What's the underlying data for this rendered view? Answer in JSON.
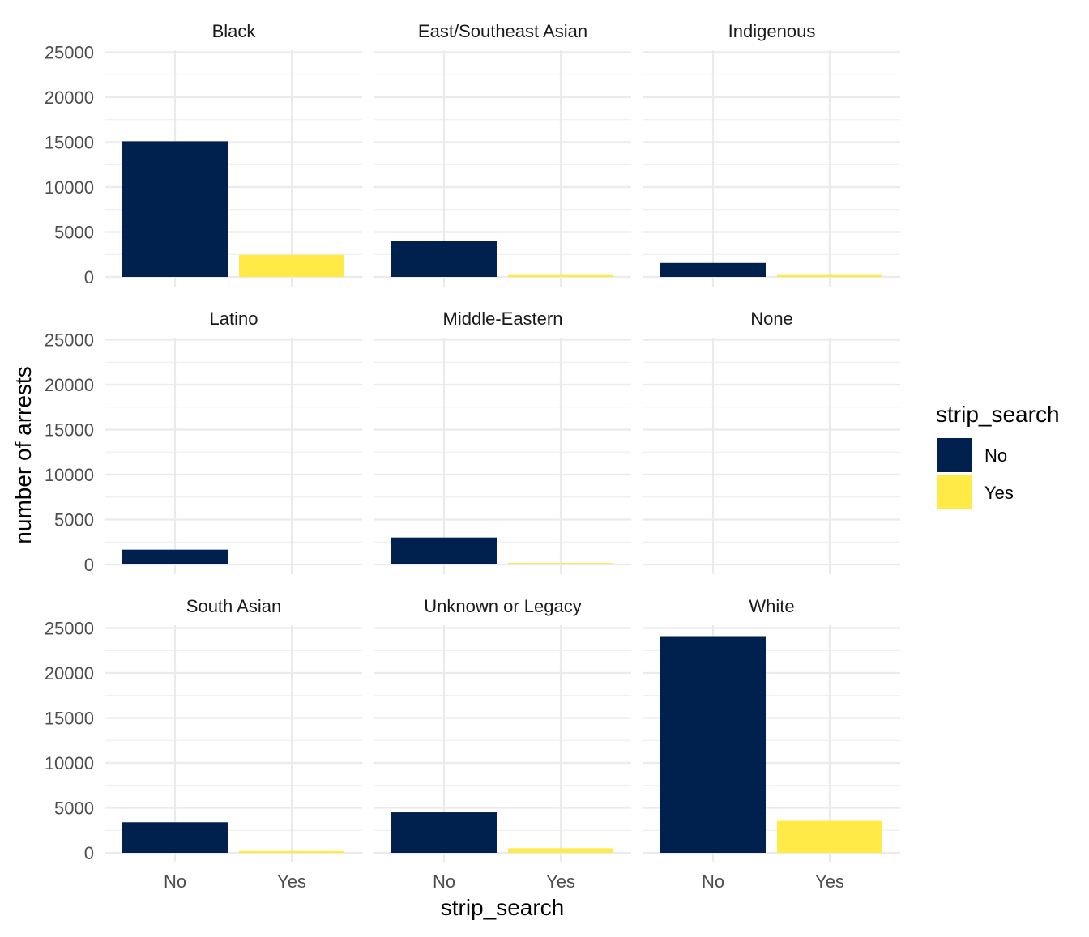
{
  "chart_data": {
    "type": "bar",
    "facet_layout": "3x3 grid",
    "x_variable": "strip_search",
    "xlabel": "strip_search",
    "ylabel": "number of arrests",
    "categories": [
      "No",
      "Yes"
    ],
    "ylim": [
      0,
      25000
    ],
    "yticks": [
      0,
      5000,
      10000,
      15000,
      20000,
      25000
    ],
    "grid": true,
    "legend": {
      "title": "strip_search",
      "position": "right",
      "entries": [
        {
          "label": "No",
          "color": "#00204D"
        },
        {
          "label": "Yes",
          "color": "#FFEA46"
        }
      ]
    },
    "colors": {
      "No": "#00204D",
      "Yes": "#FFEA46"
    },
    "facets": [
      {
        "name": "Black",
        "values": [
          15100,
          2450
        ]
      },
      {
        "name": "East/Southeast Asian",
        "values": [
          4000,
          300
        ]
      },
      {
        "name": "Indigenous",
        "values": [
          1550,
          300
        ]
      },
      {
        "name": "Latino",
        "values": [
          1650,
          60
        ]
      },
      {
        "name": "Middle-Eastern",
        "values": [
          3000,
          180
        ]
      },
      {
        "name": "None",
        "values": [
          0,
          0
        ]
      },
      {
        "name": "South Asian",
        "values": [
          3400,
          200
        ]
      },
      {
        "name": "Unknown or Legacy",
        "values": [
          4500,
          500
        ]
      },
      {
        "name": "White",
        "values": [
          24100,
          3550
        ]
      }
    ]
  }
}
